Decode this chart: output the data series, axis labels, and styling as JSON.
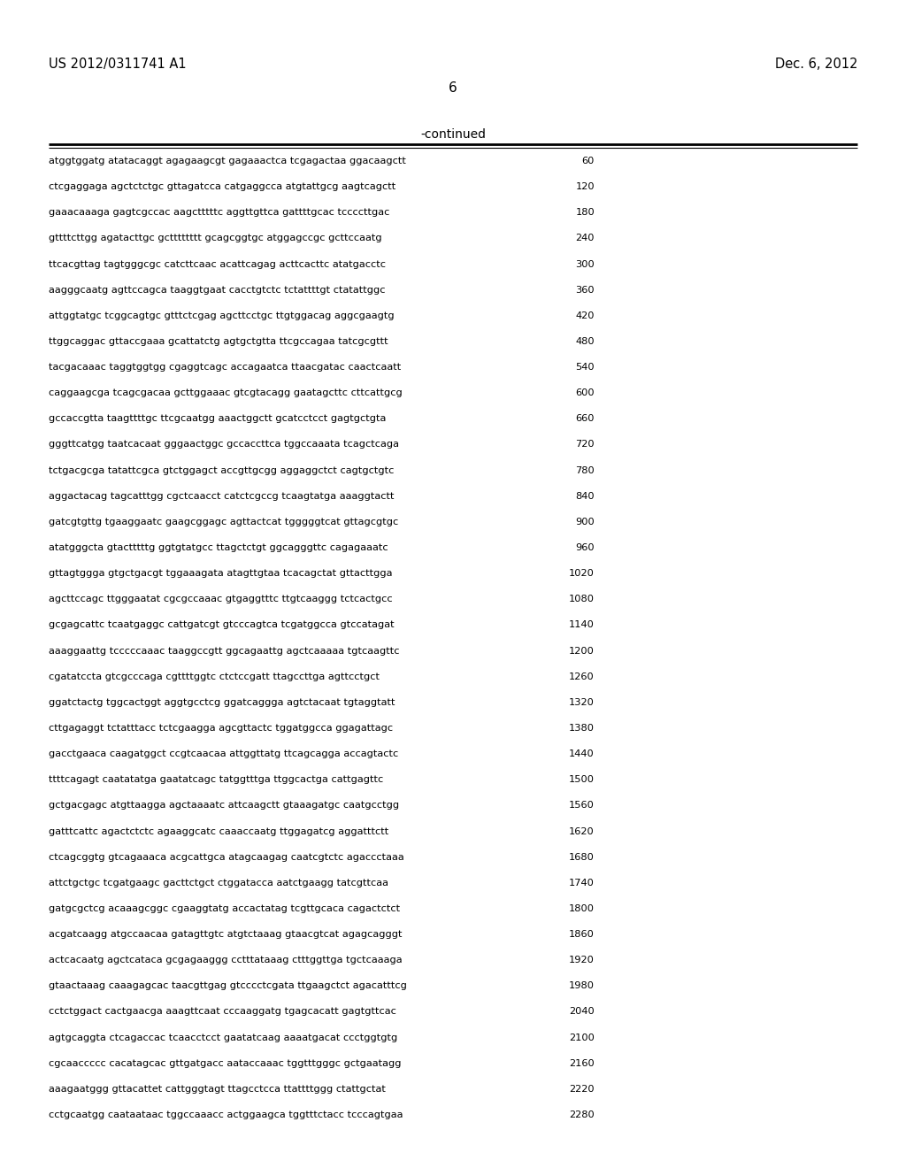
{
  "patent_number": "US 2012/0311741 A1",
  "date": "Dec. 6, 2012",
  "page_number": "6",
  "continued_label": "-continued",
  "background_color": "#ffffff",
  "text_color": "#000000",
  "sequence_lines": [
    [
      "atggtggatg atatacaggt agagaagcgt gagaaactca tcgagactaa ggacaagctt",
      "60"
    ],
    [
      "ctcgaggaga agctctctgc gttagatcca catgaggcca atgtattgcg aagtcagctt",
      "120"
    ],
    [
      "gaaacaaaga gagtcgccac aagctttttc aggttgttca gattttgcac tccccttgac",
      "180"
    ],
    [
      "gttttcttgg agatacttgc gctttttttt gcagcggtgc atggagccgc gcttccaatg",
      "240"
    ],
    [
      "ttcacgttag tagtgggcgc catcttcaac acattcagag acttcacttc atatgacctc",
      "300"
    ],
    [
      "aagggcaatg agttccagca taaggtgaat cacctgtctc tctattttgt ctatattggc",
      "360"
    ],
    [
      "attggtatgc tcggcagtgc gtttctcgag agcttcctgc ttgtggacag aggcgaagtg",
      "420"
    ],
    [
      "ttggcaggac gttaccgaaa gcattatctg agtgctgtta ttcgccagaa tatcgcgttt",
      "480"
    ],
    [
      "tacgacaaac taggtggtgg cgaggtcagc accagaatca ttaacgatac caactcaatt",
      "540"
    ],
    [
      "caggaagcga tcagcgacaa gcttggaaac gtcgtacagg gaatagcttc cttcattgcg",
      "600"
    ],
    [
      "gccaccgtta taagttttgc ttcgcaatgg aaactggctt gcatcctcct gagtgctgta",
      "660"
    ],
    [
      "gggttcatgg taatcacaat gggaactggc gccaccttca tggccaaata tcagctcaga",
      "720"
    ],
    [
      "tctgacgcga tatattcgca gtctggagct accgttgcgg aggaggctct cagtgctgtc",
      "780"
    ],
    [
      "aggactacag tagcatttgg cgctcaacct catctcgccg tcaagtatga aaaggtactt",
      "840"
    ],
    [
      "gatcgtgttg tgaaggaatc gaagcggagc agttactcat tgggggtcat gttagcgtgc",
      "900"
    ],
    [
      "atatgggcta gtactttttg ggtgtatgcc ttagctctgt ggcagggttc cagagaaatc",
      "960"
    ],
    [
      "gttagtggga gtgctgacgt tggaaagata atagttgtaa tcacagctat gttacttgga",
      "1020"
    ],
    [
      "agcttccagc ttgggaatat cgcgccaaac gtgaggtttc ttgtcaaggg tctcactgcc",
      "1080"
    ],
    [
      "gcgagcattc tcaatgaggc cattgatcgt gtcccagtca tcgatggcca gtccatagat",
      "1140"
    ],
    [
      "aaaggaattg tcccccaaac taaggccgtt ggcagaattg agctcaaaaa tgtcaagttc",
      "1200"
    ],
    [
      "cgatatccta gtcgcccaga cgttttggtc ctctccgatt ttagccttga agttcctgct",
      "1260"
    ],
    [
      "ggatctactg tggcactggt aggtgcctcg ggatcaggga agtctacaat tgtaggtatt",
      "1320"
    ],
    [
      "cttgagaggt tctatttacc tctcgaagga agcgttactc tggatggcca ggagattagc",
      "1380"
    ],
    [
      "gacctgaaca caagatggct ccgtcaacaa attggttatg ttcagcagga accagtactc",
      "1440"
    ],
    [
      "ttttcagagt caatatatga gaatatcagc tatggtttga ttggcactga cattgagttc",
      "1500"
    ],
    [
      "gctgacgagc atgttaagga agctaaaatc attcaagctt gtaaagatgc caatgcctgg",
      "1560"
    ],
    [
      "gatttcattc agactctctc agaaggcatc caaaccaatg ttggagatcg aggatttctt",
      "1620"
    ],
    [
      "ctcagcggtg gtcagaaaca acgcattgca atagcaagag caatcgtctc agaccctaaa",
      "1680"
    ],
    [
      "attctgctgc tcgatgaagc gacttctgct ctggatacca aatctgaagg tatcgttcaa",
      "1740"
    ],
    [
      "gatgcgctcg acaaagcggc cgaaggtatg accactatag tcgttgcaca cagactctct",
      "1800"
    ],
    [
      "acgatcaagg atgccaacaa gatagttgtc atgtctaaag gtaacgtcat agagcagggt",
      "1860"
    ],
    [
      "actcacaatg agctcataca gcgagaaggg cctttataaag ctttggttga tgctcaaaga",
      "1920"
    ],
    [
      "gtaactaaag caaagagcac taacgttgag gtcccctcgata ttgaagctct agacatttcg",
      "1980"
    ],
    [
      "cctctggact cactgaacga aaagttcaat cccaaggatg tgagcacatt gagtgttcac",
      "2040"
    ],
    [
      "agtgcaggta ctcagaccac tcaacctcct gaatatcaag aaaatgacat ccctggtgtg",
      "2100"
    ],
    [
      "cgcaaccccc cacatagcac gttgatgacc aataccaaac tggtttgggc gctgaatagg",
      "2160"
    ],
    [
      "aaagaatggg gttacattet cattgggtagt ttagcctcca ttattttggg ctattgctat",
      "2220"
    ],
    [
      "cctgcaatgg caataataac tggccaaacc actggaagca tggtttctacc tcccagtgaa",
      "2280"
    ]
  ],
  "fig_width": 10.24,
  "fig_height": 13.2,
  "dpi": 100
}
